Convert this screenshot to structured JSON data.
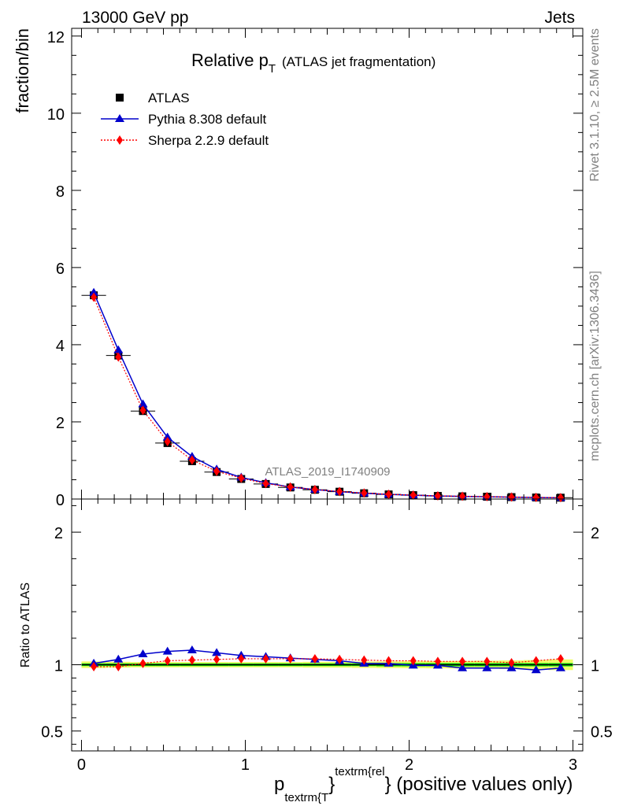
{
  "header": {
    "left": "13000 GeV pp",
    "right": "Jets",
    "side_top": "Rivet 3.1.10, ≥ 2.5M events",
    "side_bottom": "mcplots.cern.ch [arXiv:1306.3436]"
  },
  "chart_data": [
    {
      "type": "line",
      "panel": "main",
      "title": "Relative p",
      "title_sub": "T",
      "title_extra": "(ATLAS jet fragmentation)",
      "ylabel": "fraction/bin",
      "watermark": "ATLAS_2019_I1740909",
      "xlim": [
        -0.06,
        3.06
      ],
      "ylim": [
        0,
        12.2
      ],
      "yticks": [
        0,
        2,
        4,
        6,
        8,
        10,
        12
      ],
      "legend_position": "top-left",
      "x": [
        0.075,
        0.225,
        0.375,
        0.525,
        0.675,
        0.825,
        0.975,
        1.125,
        1.275,
        1.425,
        1.575,
        1.725,
        1.875,
        2.025,
        2.175,
        2.325,
        2.475,
        2.625,
        2.775,
        2.925
      ],
      "series": [
        {
          "name": "ATLAS",
          "color": "#000000",
          "marker": "square",
          "values": [
            5.28,
            3.72,
            2.28,
            1.45,
            0.98,
            0.7,
            0.52,
            0.39,
            0.3,
            0.24,
            0.19,
            0.15,
            0.12,
            0.1,
            0.08,
            0.07,
            0.06,
            0.05,
            0.04,
            0.035
          ]
        },
        {
          "name": "Pythia 8.308 default",
          "color": "#0000cc",
          "marker": "triangle",
          "values": [
            5.35,
            3.86,
            2.46,
            1.6,
            1.1,
            0.77,
            0.56,
            0.42,
            0.31,
            0.245,
            0.19,
            0.15,
            0.12,
            0.1,
            0.08,
            0.068,
            0.058,
            0.048,
            0.038,
            0.033
          ]
        },
        {
          "name": "Sherpa 2.2.9 default",
          "color": "#ff0000",
          "marker": "diamond",
          "values": [
            5.23,
            3.68,
            2.3,
            1.49,
            1.01,
            0.72,
            0.54,
            0.4,
            0.31,
            0.245,
            0.195,
            0.155,
            0.122,
            0.102,
            0.082,
            0.072,
            0.062,
            0.051,
            0.042,
            0.036
          ]
        }
      ]
    },
    {
      "type": "line",
      "panel": "ratio",
      "ylabel": "Ratio to ATLAS",
      "xlabel_main": "p",
      "xlabel_sub": "textrm{T",
      "xlabel_sup": "textrm{rel",
      "xlabel_tail": "} (positive values only)",
      "xlabel_close": "}",
      "xlim": [
        -0.06,
        3.06
      ],
      "ylim": [
        0.35,
        2.25
      ],
      "yticks": [
        0.5,
        1,
        2
      ],
      "ytick_labels": [
        "0.5",
        "1",
        "2"
      ],
      "xticks": [
        0,
        1,
        2,
        3
      ],
      "xtick_labels": [
        "0",
        "1",
        "2",
        "3"
      ],
      "band_inner_color": "#00dd00",
      "band_outer_color": "#eeff66",
      "band_inner": [
        0.01,
        0.01,
        0.01,
        0.01,
        0.01,
        0.01,
        0.01,
        0.01,
        0.01,
        0.01,
        0.01,
        0.01,
        0.012,
        0.012,
        0.012,
        0.012,
        0.012,
        0.012,
        0.012,
        0.012
      ],
      "band_outer": [
        0.025,
        0.022,
        0.02,
        0.02,
        0.02,
        0.02,
        0.02,
        0.02,
        0.02,
        0.022,
        0.022,
        0.024,
        0.025,
        0.026,
        0.027,
        0.028,
        0.03,
        0.032,
        0.035,
        0.04
      ],
      "x": [
        0.075,
        0.225,
        0.375,
        0.525,
        0.675,
        0.825,
        0.975,
        1.125,
        1.275,
        1.425,
        1.575,
        1.725,
        1.875,
        2.025,
        2.175,
        2.325,
        2.475,
        2.625,
        2.775,
        2.925
      ],
      "series": [
        {
          "name": "Pythia 8.308 default",
          "color": "#0000cc",
          "marker": "triangle",
          "values": [
            1.01,
            1.04,
            1.08,
            1.1,
            1.11,
            1.09,
            1.07,
            1.06,
            1.05,
            1.04,
            1.03,
            1.01,
            1.01,
            0.995,
            0.995,
            0.975,
            0.975,
            0.975,
            0.96,
            0.975
          ]
        },
        {
          "name": "Sherpa 2.2.9 default",
          "color": "#ff0000",
          "marker": "diamond",
          "values": [
            0.985,
            0.985,
            1.01,
            1.03,
            1.035,
            1.04,
            1.045,
            1.045,
            1.045,
            1.045,
            1.04,
            1.035,
            1.03,
            1.03,
            1.025,
            1.025,
            1.025,
            1.015,
            1.03,
            1.045
          ]
        }
      ]
    }
  ]
}
